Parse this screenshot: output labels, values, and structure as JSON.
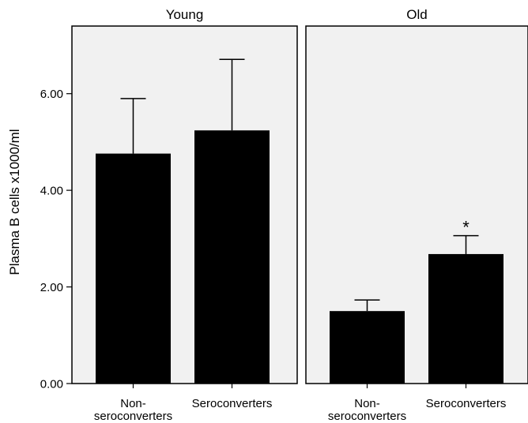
{
  "chart_data": {
    "type": "bar",
    "ylabel": "Plasma B cells x1000/ml",
    "ylim": [
      0,
      7.4
    ],
    "yticks": [
      0,
      2,
      4,
      6
    ],
    "ytick_labels": [
      "0.00",
      "2.00",
      "4.00",
      "6.00"
    ],
    "grid": false,
    "panels": [
      {
        "title": "Young",
        "categories": [
          {
            "line1": "Non-",
            "line2": "seroconverters"
          },
          {
            "line1": "Seroconverters",
            "line2": ""
          }
        ],
        "values": [
          4.76,
          5.24
        ],
        "errors": [
          1.14,
          1.47
        ],
        "annotations": [
          "",
          ""
        ]
      },
      {
        "title": "Old",
        "categories": [
          {
            "line1": "Non-",
            "line2": "seroconverters"
          },
          {
            "line1": "Seroconverters",
            "line2": ""
          }
        ],
        "values": [
          1.5,
          2.68
        ],
        "errors": [
          0.23,
          0.38
        ],
        "annotations": [
          "",
          "*"
        ]
      }
    ]
  }
}
